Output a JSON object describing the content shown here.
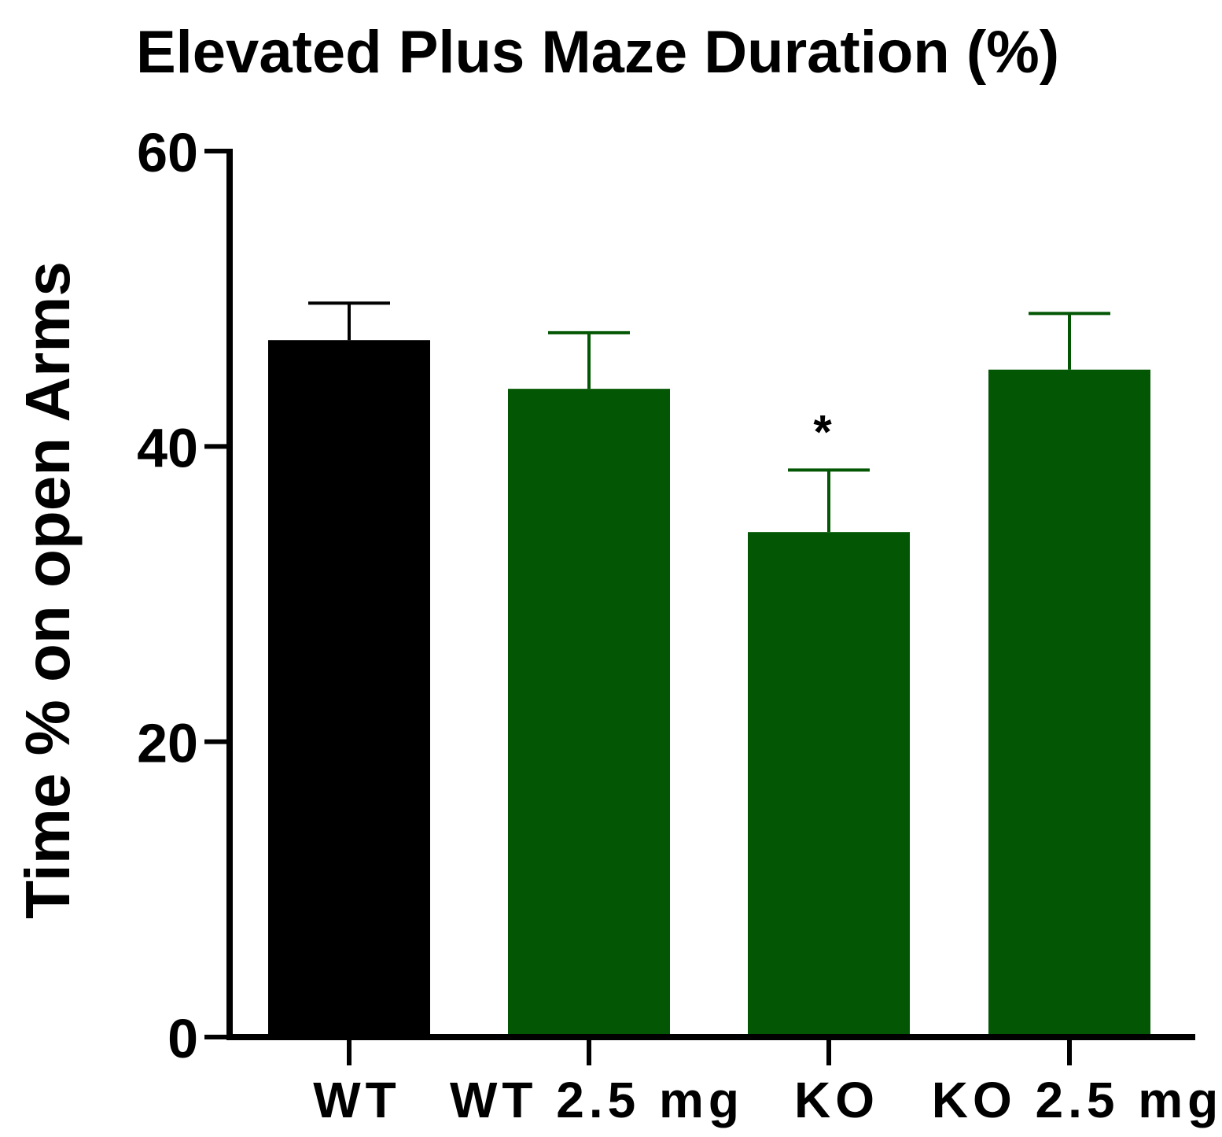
{
  "chart_data": {
    "type": "bar",
    "title": "Elevated Plus Maze Duration (%)",
    "xlabel": "",
    "ylabel": "Time % on open Arms",
    "ylim": [
      0,
      60
    ],
    "yticks": [
      0,
      20,
      40,
      60
    ],
    "categories": [
      "WT",
      "WT 2.5 mg",
      "KO",
      "KO 2.5 mg"
    ],
    "values": [
      47.2,
      43.9,
      34.2,
      45.2
    ],
    "errors": [
      2.5,
      3.8,
      4.2,
      3.8
    ],
    "colors": [
      "#000000",
      "#035603",
      "#035603",
      "#035603"
    ],
    "error_colors": [
      "#000000",
      "#035603",
      "#035603",
      "#035603"
    ],
    "annotations": [
      {
        "category": "KO",
        "text": "*"
      }
    ]
  }
}
